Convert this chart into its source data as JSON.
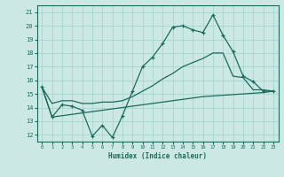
{
  "xlabel": "Humidex (Indice chaleur)",
  "bg_color": "#cce8e4",
  "line_color": "#1a6b5a",
  "grid_color": "#aad8d0",
  "x_values": [
    0,
    1,
    2,
    3,
    4,
    5,
    6,
    7,
    8,
    9,
    10,
    11,
    12,
    13,
    14,
    15,
    16,
    17,
    18,
    19,
    20,
    21,
    22,
    23
  ],
  "line1": [
    15.5,
    13.3,
    14.2,
    14.1,
    13.8,
    11.9,
    12.7,
    11.8,
    13.4,
    15.2,
    17.0,
    17.7,
    18.7,
    19.9,
    20.0,
    19.7,
    19.5,
    20.8,
    19.3,
    18.1,
    16.3,
    15.9,
    15.2,
    15.2
  ],
  "line2": [
    15.5,
    14.3,
    14.5,
    14.5,
    14.3,
    14.3,
    14.4,
    14.4,
    14.5,
    14.8,
    15.2,
    15.6,
    16.1,
    16.5,
    17.0,
    17.3,
    17.6,
    18.0,
    18.0,
    16.3,
    16.2,
    15.3,
    15.3,
    15.2
  ],
  "line3": [
    15.5,
    13.3,
    13.4,
    13.5,
    13.6,
    13.7,
    13.8,
    13.9,
    14.0,
    14.1,
    14.2,
    14.3,
    14.4,
    14.5,
    14.6,
    14.7,
    14.8,
    14.85,
    14.9,
    14.95,
    15.0,
    15.05,
    15.1,
    15.2
  ],
  "ylim": [
    11.5,
    21.5
  ],
  "xlim": [
    -0.5,
    23.5
  ],
  "yticks": [
    12,
    13,
    14,
    15,
    16,
    17,
    18,
    19,
    20,
    21
  ],
  "xticks": [
    0,
    1,
    2,
    3,
    4,
    5,
    6,
    7,
    8,
    9,
    10,
    11,
    12,
    13,
    14,
    15,
    16,
    17,
    18,
    19,
    20,
    21,
    22,
    23
  ]
}
